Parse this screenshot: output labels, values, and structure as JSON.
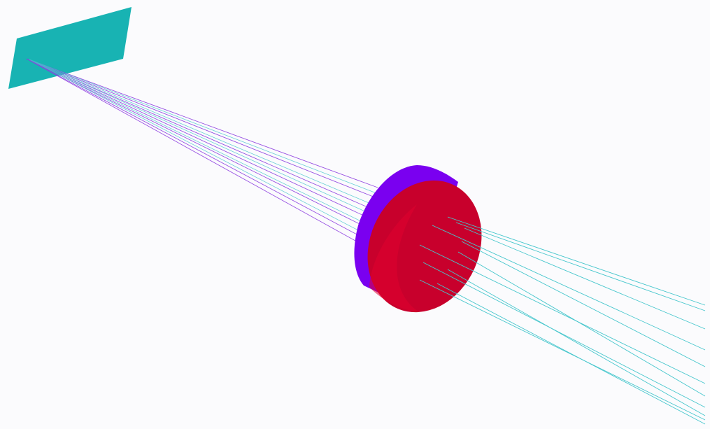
{
  "scene": {
    "background": "#fbfbfd",
    "elements": [
      {
        "name": "detector-plane",
        "color": "#18b3b3"
      },
      {
        "name": "lens-edge",
        "color": "#7a00f0"
      },
      {
        "name": "lens-front-face",
        "color": "#c8002c"
      },
      {
        "name": "focused-rays",
        "color": "#8d3fe0"
      },
      {
        "name": "incoming-rays",
        "color": "#45c6cc"
      }
    ]
  }
}
